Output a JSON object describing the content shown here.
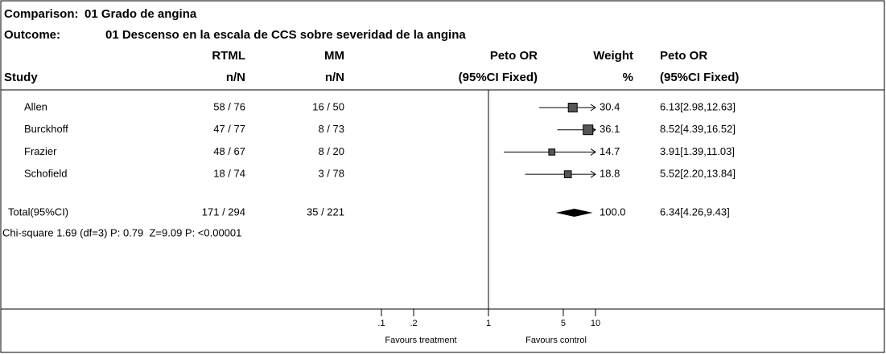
{
  "chart_data": {
    "type": "forest",
    "comparison_label": "Comparison:",
    "comparison": "01 Grado de angina",
    "outcome_label": "Outcome:",
    "outcome": "01 Descenso en la escala de CCS sobre severidad de la angina",
    "study_header": "Study",
    "columns": [
      {
        "top": "RTML",
        "bottom": "n/N"
      },
      {
        "top": "MM",
        "bottom": "n/N"
      },
      {
        "top": "Peto OR",
        "bottom": "(95%CI Fixed)"
      },
      {
        "top": "Weight",
        "bottom": "%"
      },
      {
        "top": "Peto OR",
        "bottom": "(95%CI Fixed)"
      }
    ],
    "studies": [
      {
        "name": "Allen",
        "treatment": "58 / 76",
        "control": "16 / 50",
        "or": 6.13,
        "low": 2.98,
        "high": 12.63,
        "weight": 30.4,
        "ci_label": "6.13[2.98,12.63]"
      },
      {
        "name": "Burckhoff",
        "treatment": "47 / 77",
        "control": "8 / 73",
        "or": 8.52,
        "low": 4.39,
        "high": 16.52,
        "weight": 36.1,
        "ci_label": "8.52[4.39,16.52]"
      },
      {
        "name": "Frazier",
        "treatment": "48 / 67",
        "control": "8 / 20",
        "or": 3.91,
        "low": 1.39,
        "high": 11.03,
        "weight": 14.7,
        "ci_label": "3.91[1.39,11.03]"
      },
      {
        "name": "Schofield",
        "treatment": "18 / 74",
        "control": "3 / 78",
        "or": 5.52,
        "low": 2.2,
        "high": 13.84,
        "weight": 18.8,
        "ci_label": "5.52[2.20,13.84]"
      }
    ],
    "total": {
      "name": "Total(95%CI)",
      "treatment": "171 / 294",
      "control": "35 / 221",
      "or": 6.34,
      "low": 4.26,
      "high": 9.43,
      "weight": 100,
      "weight_label": "100.0",
      "ci_label": "6.34[4.26,9.43]"
    },
    "heterogeneity": "Chi-square 1.69 (df=3) P: 0.79  Z=9.09 P: <0.00001",
    "log_scale": true,
    "xlim": [
      0.1,
      10
    ],
    "xticks": [
      {
        "value": 0.1,
        "label": ".1"
      },
      {
        "value": 0.2,
        "label": ".2"
      },
      1,
      5,
      10
    ],
    "favours_left": "Favours treatment",
    "favours_right": "Favours control"
  }
}
